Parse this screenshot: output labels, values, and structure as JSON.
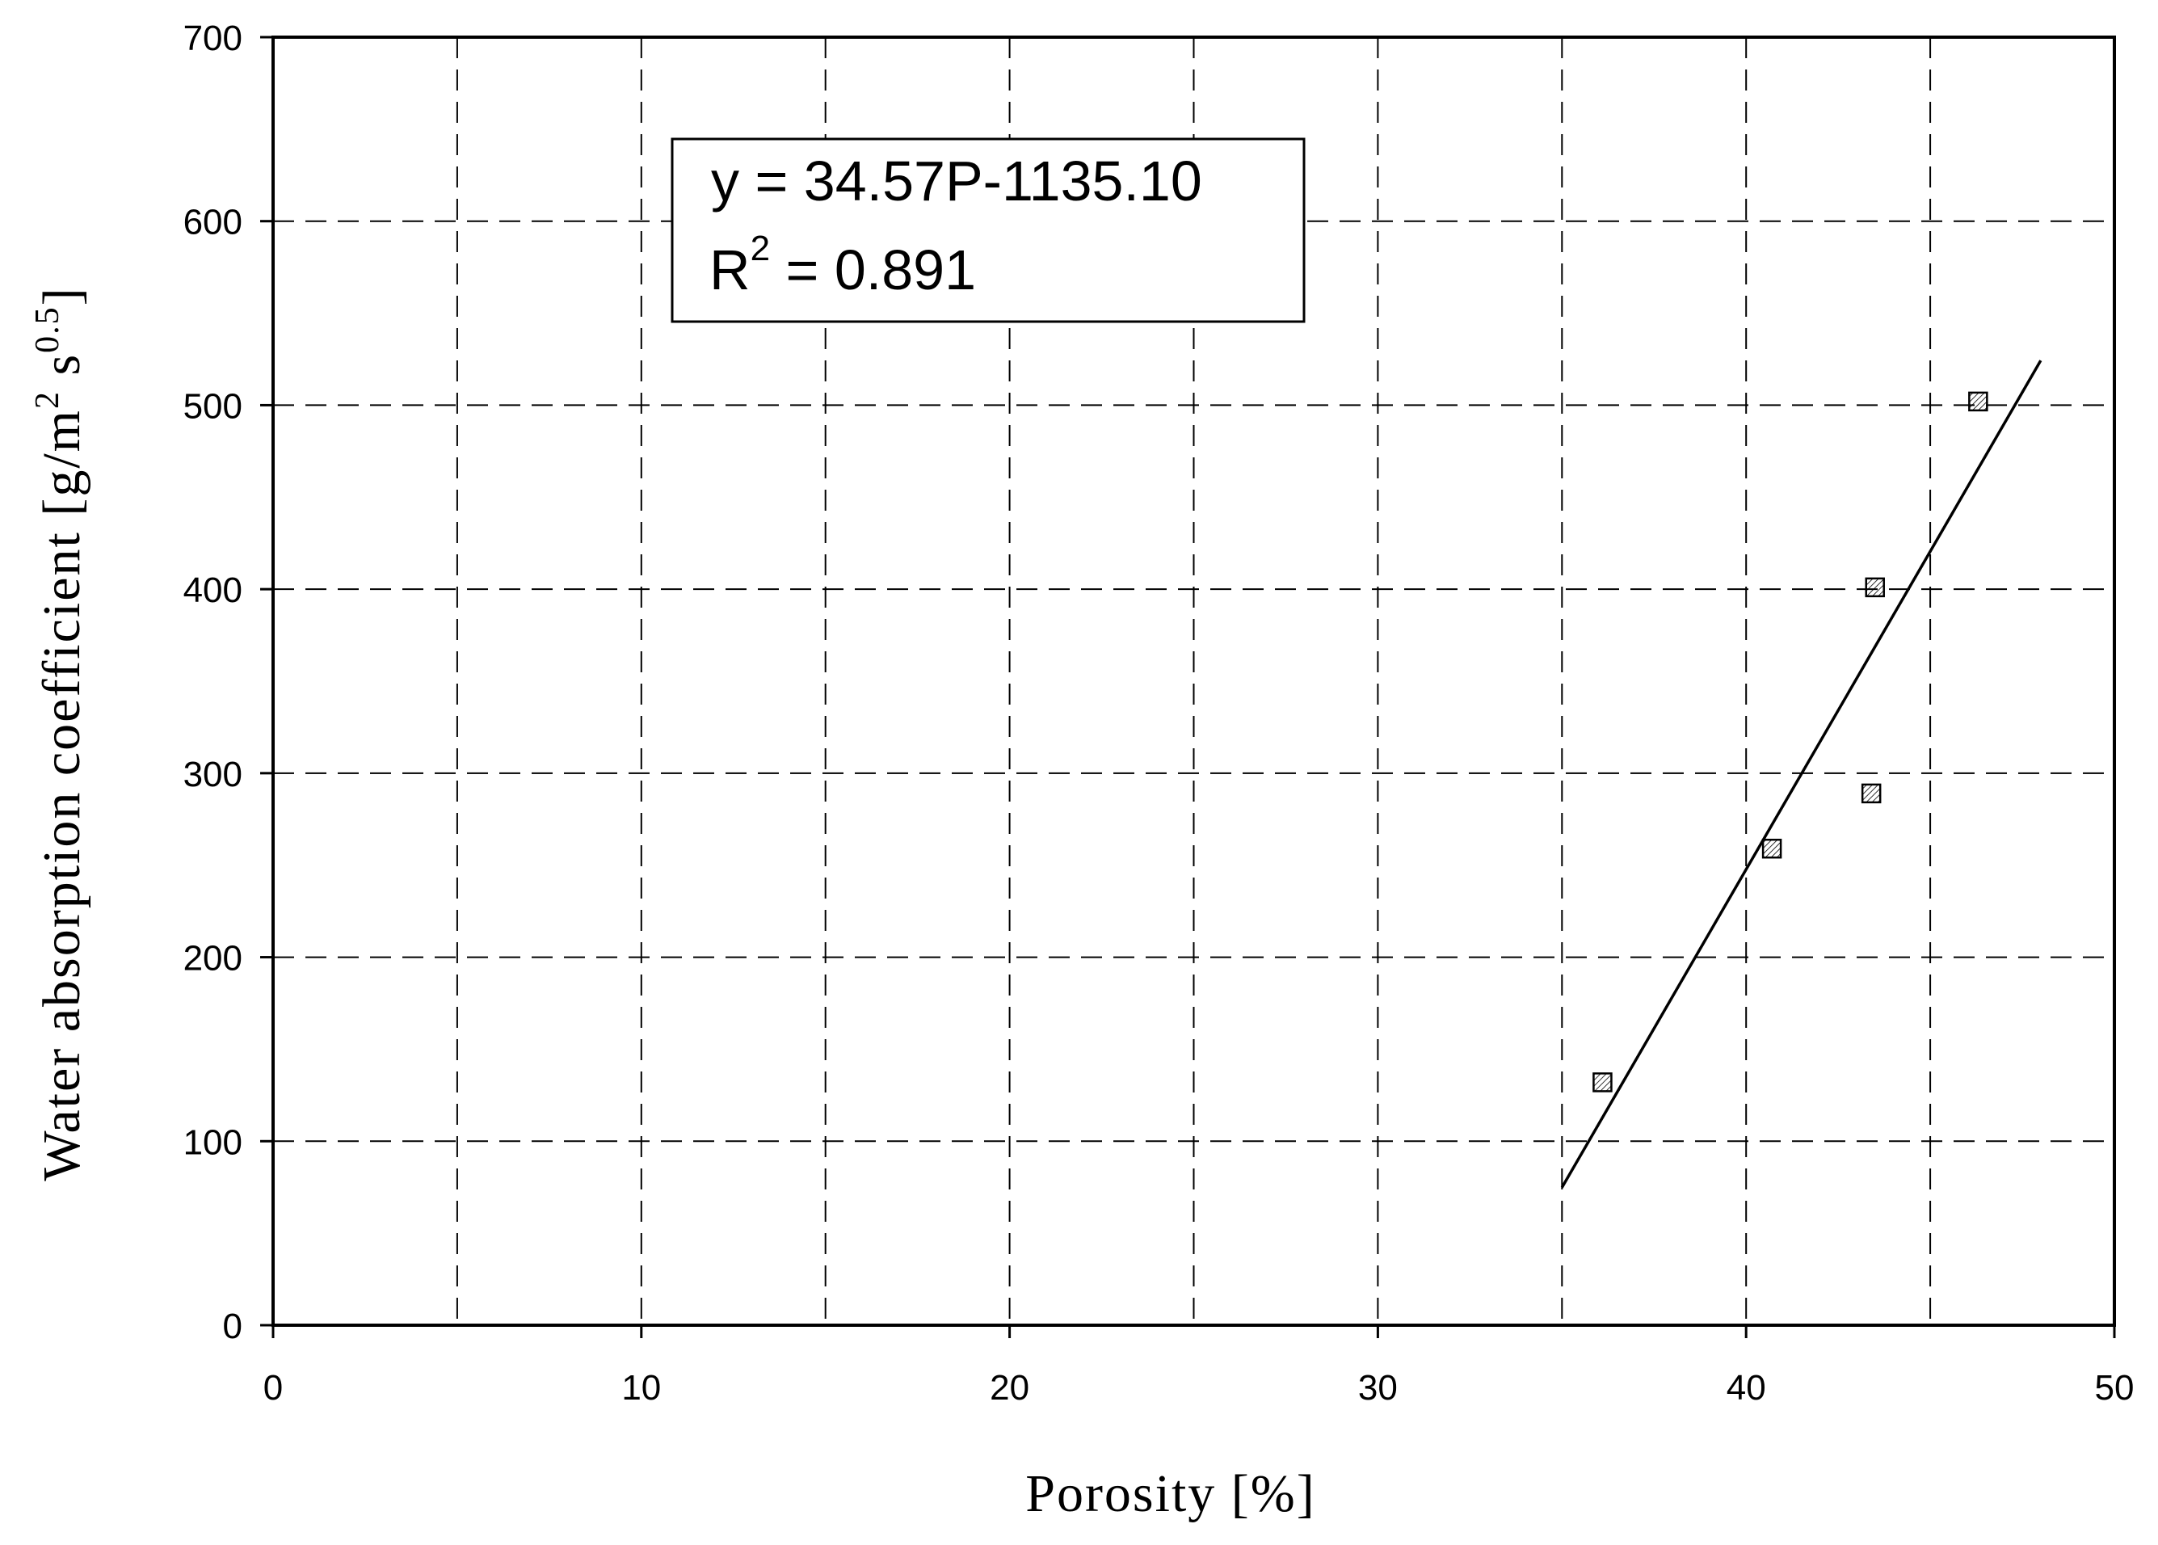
{
  "chart_data": {
    "type": "scatter",
    "xlabel": "Porosity [%]",
    "ylabel": {
      "main": "Water absorption coefficient [g/m",
      "sup1": "2",
      "mid": " s",
      "sup2": "0.5",
      "end": "]"
    },
    "xlim": [
      0,
      50
    ],
    "ylim": [
      0,
      700
    ],
    "x_ticks": [
      0,
      10,
      20,
      30,
      40,
      50
    ],
    "y_ticks": [
      0,
      100,
      200,
      300,
      400,
      500,
      600,
      700
    ],
    "x_grid": [
      5,
      10,
      15,
      20,
      25,
      30,
      35,
      40,
      45
    ],
    "y_grid": [
      100,
      200,
      300,
      400,
      500,
      600
    ],
    "grid": true,
    "grid_style": "dashed",
    "series": [
      {
        "marker": "hatched-square",
        "points": [
          {
            "x": 36.1,
            "y": 132
          },
          {
            "x": 40.7,
            "y": 259
          },
          {
            "x": 43.4,
            "y": 289
          },
          {
            "x": 43.5,
            "y": 401
          },
          {
            "x": 46.3,
            "y": 502
          }
        ]
      }
    ],
    "fit_line": {
      "slope": 34.57,
      "intercept": -1135.1,
      "x_range": [
        35,
        48
      ]
    },
    "annotation": {
      "line1": "y = 34.57P-1135.10",
      "line2_base": "R",
      "line2_sup": "2",
      "line2_rest": " = 0.891"
    }
  }
}
